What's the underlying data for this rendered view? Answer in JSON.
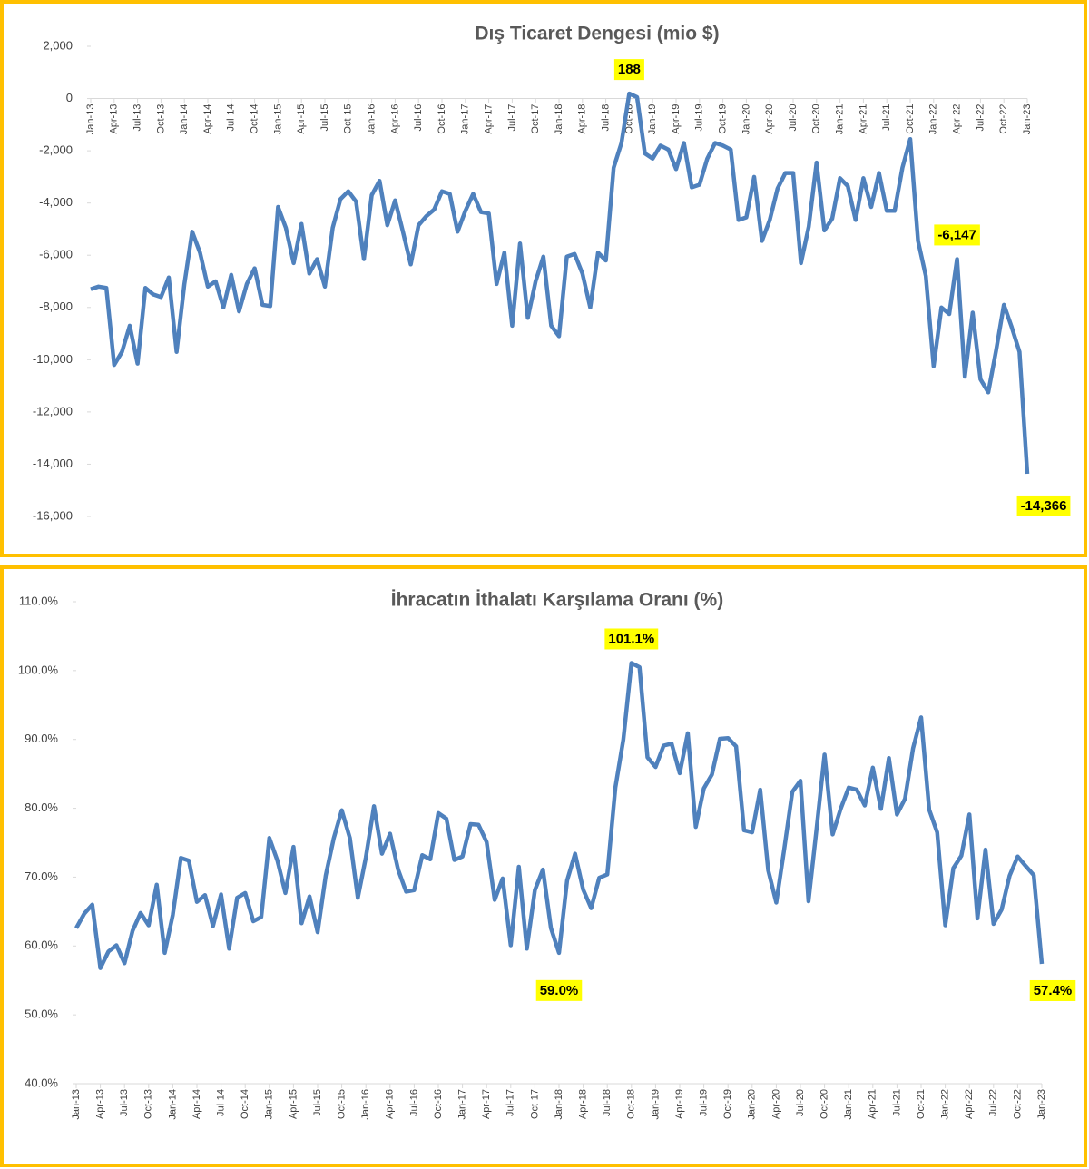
{
  "chart_data": [
    {
      "type": "line",
      "title": "Dış Ticaret Dengesi (mio $)",
      "color": "#4f81bd",
      "categories": [
        "Jan-13",
        null,
        null,
        "Apr-13",
        null,
        null,
        "Jul-13",
        null,
        null,
        "Oct-13",
        null,
        null,
        "Jan-14",
        null,
        null,
        "Apr-14",
        null,
        null,
        "Jul-14",
        null,
        null,
        "Oct-14",
        null,
        null,
        "Jan-15",
        null,
        null,
        "Apr-15",
        null,
        null,
        "Jul-15",
        null,
        null,
        "Oct-15",
        null,
        null,
        "Jan-16",
        null,
        null,
        "Apr-16",
        null,
        null,
        "Jul-16",
        null,
        null,
        "Oct-16",
        null,
        null,
        "Jan-17",
        null,
        null,
        "Apr-17",
        null,
        null,
        "Jul-17",
        null,
        null,
        "Oct-17",
        null,
        null,
        "Jan-18",
        null,
        null,
        "Apr-18",
        null,
        null,
        "Jul-18",
        null,
        null,
        "Oct-18",
        null,
        null,
        "Jan-19",
        null,
        null,
        "Apr-19",
        null,
        null,
        "Jul-19",
        null,
        null,
        "Oct-19",
        null,
        null,
        "Jan-20",
        null,
        null,
        "Apr-20",
        null,
        null,
        "Jul-20",
        null,
        null,
        "Oct-20",
        null,
        null,
        "Jan-21",
        null,
        null,
        "Apr-21",
        null,
        null,
        "Jul-21",
        null,
        null,
        "Oct-21",
        null,
        null,
        "Jan-22",
        null,
        null,
        "Apr-22",
        null,
        null,
        "Jul-22",
        null,
        null,
        "Oct-22",
        null,
        null,
        "Jan-23"
      ],
      "values": [
        -7300,
        -7200,
        -7250,
        -10200,
        -9700,
        -8700,
        -10150,
        -7250,
        -7500,
        -7600,
        -6850,
        -9700,
        -7100,
        -5100,
        -5900,
        -7200,
        -7000,
        -8000,
        -6750,
        -8150,
        -7100,
        -6500,
        -7900,
        -7950,
        -4150,
        -4950,
        -6300,
        -4800,
        -6700,
        -6150,
        -7200,
        -4950,
        -3850,
        -3550,
        -3950,
        -6150,
        -3700,
        -3150,
        -4850,
        -3900,
        -5100,
        -6350,
        -4850,
        -4500,
        -4250,
        -3550,
        -3650,
        -5100,
        -4300,
        -3650,
        -4350,
        -4400,
        -7100,
        -5900,
        -8700,
        -5550,
        -8400,
        -7000,
        -6050,
        -8700,
        -9100,
        -6050,
        -5950,
        -6700,
        -8000,
        -5900,
        -6200,
        -2650,
        -1700,
        188,
        50,
        -2100,
        -2300,
        -1800,
        -1950,
        -2700,
        -1700,
        -3400,
        -3300,
        -2300,
        -1700,
        -1800,
        -1950,
        -4650,
        -4550,
        -3000,
        -5450,
        -4650,
        -3450,
        -2850,
        -2850,
        -6300,
        -4900,
        -2450,
        -5050,
        -4600,
        -3050,
        -3350,
        -4650,
        -3050,
        -4150,
        -2850,
        -4300,
        -4300,
        -2650,
        -1550,
        -5450,
        -6800,
        -10250,
        -8000,
        -8250,
        -6147,
        -10650,
        -8200,
        -10750,
        -11250,
        -9650,
        -7900,
        -8750,
        -9700,
        -14366
      ],
      "value_labels": [
        null,
        null,
        null,
        null,
        null,
        null,
        null,
        null,
        null,
        null,
        null,
        null,
        null,
        null,
        null,
        null,
        null,
        null,
        null,
        null,
        null,
        null,
        null,
        null,
        null,
        null,
        null,
        null,
        null,
        null,
        null,
        null,
        null,
        null,
        null,
        null,
        null,
        null,
        null,
        null,
        null,
        null,
        null,
        null,
        null,
        null,
        null,
        null,
        null,
        null,
        null,
        null,
        null,
        null,
        null,
        null,
        null,
        null,
        null,
        null,
        null,
        null,
        null,
        null,
        null,
        null,
        null,
        null,
        null,
        "188",
        null,
        null,
        null,
        null,
        null,
        null,
        null,
        null,
        null,
        null,
        null,
        null,
        null,
        null,
        null,
        null,
        null,
        null,
        null,
        null,
        null,
        null,
        null,
        null,
        null,
        null,
        null,
        null,
        null,
        null,
        null,
        null,
        null,
        null,
        null,
        null,
        null,
        null,
        null,
        null,
        null,
        "-6,147",
        null,
        null,
        null,
        null,
        null,
        null,
        null,
        null,
        "-14,366"
      ],
      "ylim": [
        -16000,
        2000
      ],
      "yticks": [
        {
          "value": 2000,
          "label": "2,000"
        },
        0,
        {
          "value": -2000,
          "label": "-2,000"
        },
        {
          "value": -4000,
          "label": "-4,000"
        },
        {
          "value": -6000,
          "label": "-6,000"
        },
        {
          "value": -8000,
          "label": "-8,000"
        },
        {
          "value": -10000,
          "label": "-10,000"
        },
        {
          "value": -12000,
          "label": "-12,000"
        },
        {
          "value": -14000,
          "label": "-14,000"
        },
        {
          "value": -16000,
          "label": "-16,000"
        }
      ]
    },
    {
      "type": "line",
      "title": "İhracatın İthalatı Karşılama Oranı (%)",
      "color": "#4f81bd",
      "categories": [
        "Jan-13",
        null,
        null,
        "Apr-13",
        null,
        null,
        "Jul-13",
        null,
        null,
        "Oct-13",
        null,
        null,
        "Jan-14",
        null,
        null,
        "Apr-14",
        null,
        null,
        "Jul-14",
        null,
        null,
        "Oct-14",
        null,
        null,
        "Jan-15",
        null,
        null,
        "Apr-15",
        null,
        null,
        "Jul-15",
        null,
        null,
        "Oct-15",
        null,
        null,
        "Jan-16",
        null,
        null,
        "Apr-16",
        null,
        null,
        "Jul-16",
        null,
        null,
        "Oct-16",
        null,
        null,
        "Jan-17",
        null,
        null,
        "Apr-17",
        null,
        null,
        "Jul-17",
        null,
        null,
        "Oct-17",
        null,
        null,
        "Jan-18",
        null,
        null,
        "Apr-18",
        null,
        null,
        "Jul-18",
        null,
        null,
        "Oct-18",
        null,
        null,
        "Jan-19",
        null,
        null,
        "Apr-19",
        null,
        null,
        "Jul-19",
        null,
        null,
        "Oct-19",
        null,
        null,
        "Jan-20",
        null,
        null,
        "Apr-20",
        null,
        null,
        "Jul-20",
        null,
        null,
        "Oct-20",
        null,
        null,
        "Jan-21",
        null,
        null,
        "Apr-21",
        null,
        null,
        "Jul-21",
        null,
        null,
        "Oct-21",
        null,
        null,
        "Jan-22",
        null,
        null,
        "Apr-22",
        null,
        null,
        "Jul-22",
        null,
        null,
        "Oct-22",
        null,
        null,
        "Jan-23"
      ],
      "values": [
        62.6,
        64.7,
        66.0,
        56.8,
        59.2,
        60.1,
        57.5,
        62.2,
        64.8,
        63.0,
        68.9,
        59.0,
        64.5,
        72.8,
        72.4,
        66.4,
        67.4,
        62.9,
        67.5,
        59.6,
        67.0,
        67.7,
        63.6,
        64.2,
        75.7,
        72.4,
        67.7,
        74.4,
        63.3,
        67.2,
        62.0,
        70.2,
        75.6,
        79.7,
        75.7,
        67.0,
        72.9,
        80.3,
        73.4,
        76.3,
        71.1,
        67.9,
        68.1,
        73.2,
        72.6,
        79.3,
        78.5,
        72.5,
        73.0,
        77.7,
        77.6,
        75.1,
        66.7,
        69.8,
        60.1,
        71.5,
        59.6,
        68.1,
        71.1,
        62.6,
        59.0,
        69.5,
        73.4,
        68.2,
        65.5,
        69.9,
        70.4,
        83.0,
        90.0,
        101.1,
        100.5,
        87.4,
        86.0,
        89.1,
        89.4,
        85.1,
        90.9,
        77.3,
        82.9,
        84.9,
        90.1,
        90.2,
        89.0,
        76.8,
        76.5,
        82.7,
        71.0,
        66.3,
        74.2,
        82.4,
        84.0,
        66.5,
        76.9,
        87.8,
        76.2,
        79.9,
        83.0,
        82.7,
        80.4,
        85.9,
        79.9,
        87.3,
        79.1,
        81.4,
        88.7,
        93.2,
        79.8,
        76.5,
        63.0,
        71.3,
        73.1,
        79.1,
        64.0,
        74.0,
        63.2,
        65.3,
        70.2,
        73.0,
        71.6,
        70.3,
        57.4
      ],
      "value_labels": [
        null,
        null,
        null,
        null,
        null,
        null,
        null,
        null,
        null,
        null,
        null,
        null,
        null,
        null,
        null,
        null,
        null,
        null,
        null,
        null,
        null,
        null,
        null,
        null,
        null,
        null,
        null,
        null,
        null,
        null,
        null,
        null,
        null,
        null,
        null,
        null,
        null,
        null,
        null,
        null,
        null,
        null,
        null,
        null,
        null,
        null,
        null,
        null,
        null,
        null,
        null,
        null,
        null,
        null,
        null,
        null,
        null,
        null,
        null,
        null,
        "59.0%",
        null,
        null,
        null,
        null,
        null,
        null,
        null,
        null,
        "101.1%",
        null,
        null,
        null,
        null,
        null,
        null,
        null,
        null,
        null,
        null,
        null,
        null,
        null,
        null,
        null,
        null,
        null,
        null,
        null,
        null,
        null,
        null,
        null,
        null,
        null,
        null,
        null,
        null,
        null,
        null,
        null,
        null,
        null,
        null,
        null,
        null,
        null,
        null,
        null,
        null,
        null,
        null,
        null,
        null,
        null,
        null,
        null,
        null,
        null,
        null,
        "57.4%"
      ],
      "ylim": [
        40,
        110
      ],
      "yticks": [
        {
          "value": 40,
          "label": "40.0%"
        },
        {
          "value": 50,
          "label": "50.0%"
        },
        {
          "value": 60,
          "label": "60.0%"
        },
        {
          "value": 70,
          "label": "70.0%"
        },
        {
          "value": 80,
          "label": "80.0%"
        },
        {
          "value": 90,
          "label": "90.0%"
        },
        {
          "value": 100,
          "label": "100.0%"
        },
        {
          "value": 110,
          "label": "110.0%"
        }
      ]
    }
  ]
}
